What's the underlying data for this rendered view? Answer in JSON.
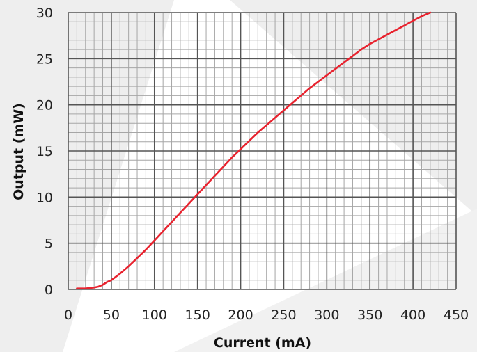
{
  "chart_data": {
    "type": "line",
    "title": "",
    "xlabel": "Current (mA)",
    "ylabel": "Output (mW)",
    "xlim": [
      0,
      450
    ],
    "ylim": [
      0,
      30
    ],
    "x_ticks": [
      "0",
      "50",
      "100",
      "150",
      "200",
      "250",
      "300",
      "350",
      "400",
      "450"
    ],
    "y_ticks": [
      "0",
      "5",
      "10",
      "15",
      "20",
      "25",
      "30"
    ],
    "grid": true,
    "series_color": "#e8222e",
    "series": [
      {
        "x": [
          10,
          20,
          30,
          35,
          40,
          45,
          50,
          60,
          70,
          80,
          90,
          100,
          110,
          120,
          130,
          140,
          150,
          160,
          170,
          180,
          190,
          200,
          210,
          220,
          230,
          240,
          250,
          260,
          270,
          280,
          290,
          300,
          310,
          320,
          330,
          340,
          350,
          360,
          370,
          380,
          390,
          400,
          410,
          420
        ],
        "y": [
          0.1,
          0.1,
          0.2,
          0.3,
          0.5,
          0.8,
          1.0,
          1.7,
          2.5,
          3.4,
          4.3,
          5.3,
          6.3,
          7.3,
          8.3,
          9.3,
          10.3,
          11.3,
          12.3,
          13.3,
          14.3,
          15.2,
          16.1,
          17.0,
          17.8,
          18.6,
          19.4,
          20.2,
          21.0,
          21.8,
          22.5,
          23.2,
          23.9,
          24.6,
          25.3,
          26.0,
          26.6,
          27.1,
          27.6,
          28.1,
          28.6,
          29.1,
          29.6,
          30.0
        ]
      }
    ]
  }
}
